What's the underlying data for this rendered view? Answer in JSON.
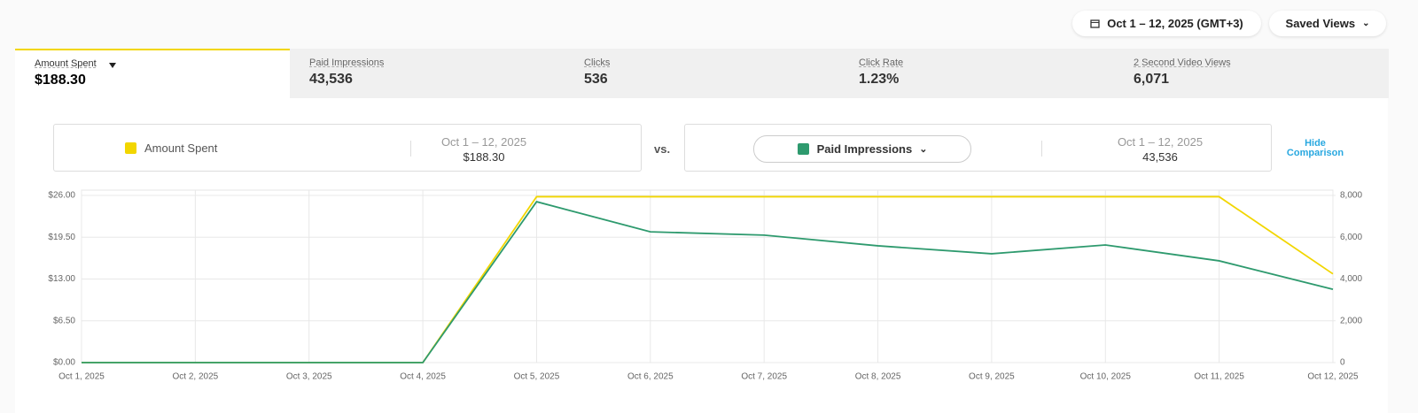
{
  "header": {
    "date_range": "Oct 1 – 12, 2025 (GMT+3)",
    "saved_views": "Saved Views"
  },
  "tabs": [
    {
      "label": "Amount Spent",
      "value": "$188.30"
    },
    {
      "label": "Paid Impressions",
      "value": "43,536"
    },
    {
      "label": "Clicks",
      "value": "536"
    },
    {
      "label": "Click Rate",
      "value": "1.23%"
    },
    {
      "label": "2 Second Video Views",
      "value": "6,071"
    }
  ],
  "comparison": {
    "primary": {
      "range": "Oct 1 – 12, 2025",
      "value": "$188.30"
    },
    "vs": "vs.",
    "secondary": {
      "range": "Oct 1 – 12, 2025",
      "value": "43,536"
    },
    "hide": "Hide Comparison"
  },
  "chart_data": {
    "type": "line",
    "categories": [
      "Oct 1, 2025",
      "Oct 2, 2025",
      "Oct 3, 2025",
      "Oct 4, 2025",
      "Oct 5, 2025",
      "Oct 6, 2025",
      "Oct 7, 2025",
      "Oct 8, 2025",
      "Oct 9, 2025",
      "Oct 10, 2025",
      "Oct 11, 2025",
      "Oct 12, 2025"
    ],
    "series": [
      {
        "name": "Amount Spent",
        "color": "#f2d600",
        "values": [
          0,
          0,
          0,
          0,
          25.8,
          25.8,
          25.8,
          25.8,
          25.8,
          25.8,
          25.8,
          13.8
        ]
      },
      {
        "name": "Paid Impressions",
        "color": "#2e9a6e",
        "axis": "y2",
        "values": [
          0,
          0,
          0,
          0,
          7700,
          6260,
          6100,
          5590,
          5210,
          5630,
          4870,
          3510
        ]
      }
    ],
    "ylim": [
      0,
      26
    ],
    "yticks": [
      {
        "value": 0,
        "label": "$0.00"
      },
      {
        "value": 6.5,
        "label": "$6.50"
      },
      {
        "value": 13,
        "label": "$13.00"
      },
      {
        "value": 19.5,
        "label": "$19.50"
      },
      {
        "value": 26,
        "label": "$26.00"
      }
    ],
    "y2lim": [
      0,
      8000
    ],
    "y2ticks": [
      0,
      {
        "value": 2000,
        "label": "2,000"
      },
      {
        "value": 4000,
        "label": "4,000"
      },
      {
        "value": 6000,
        "label": "6,000"
      },
      {
        "value": 8000,
        "label": "8,000"
      }
    ],
    "grid": true
  }
}
